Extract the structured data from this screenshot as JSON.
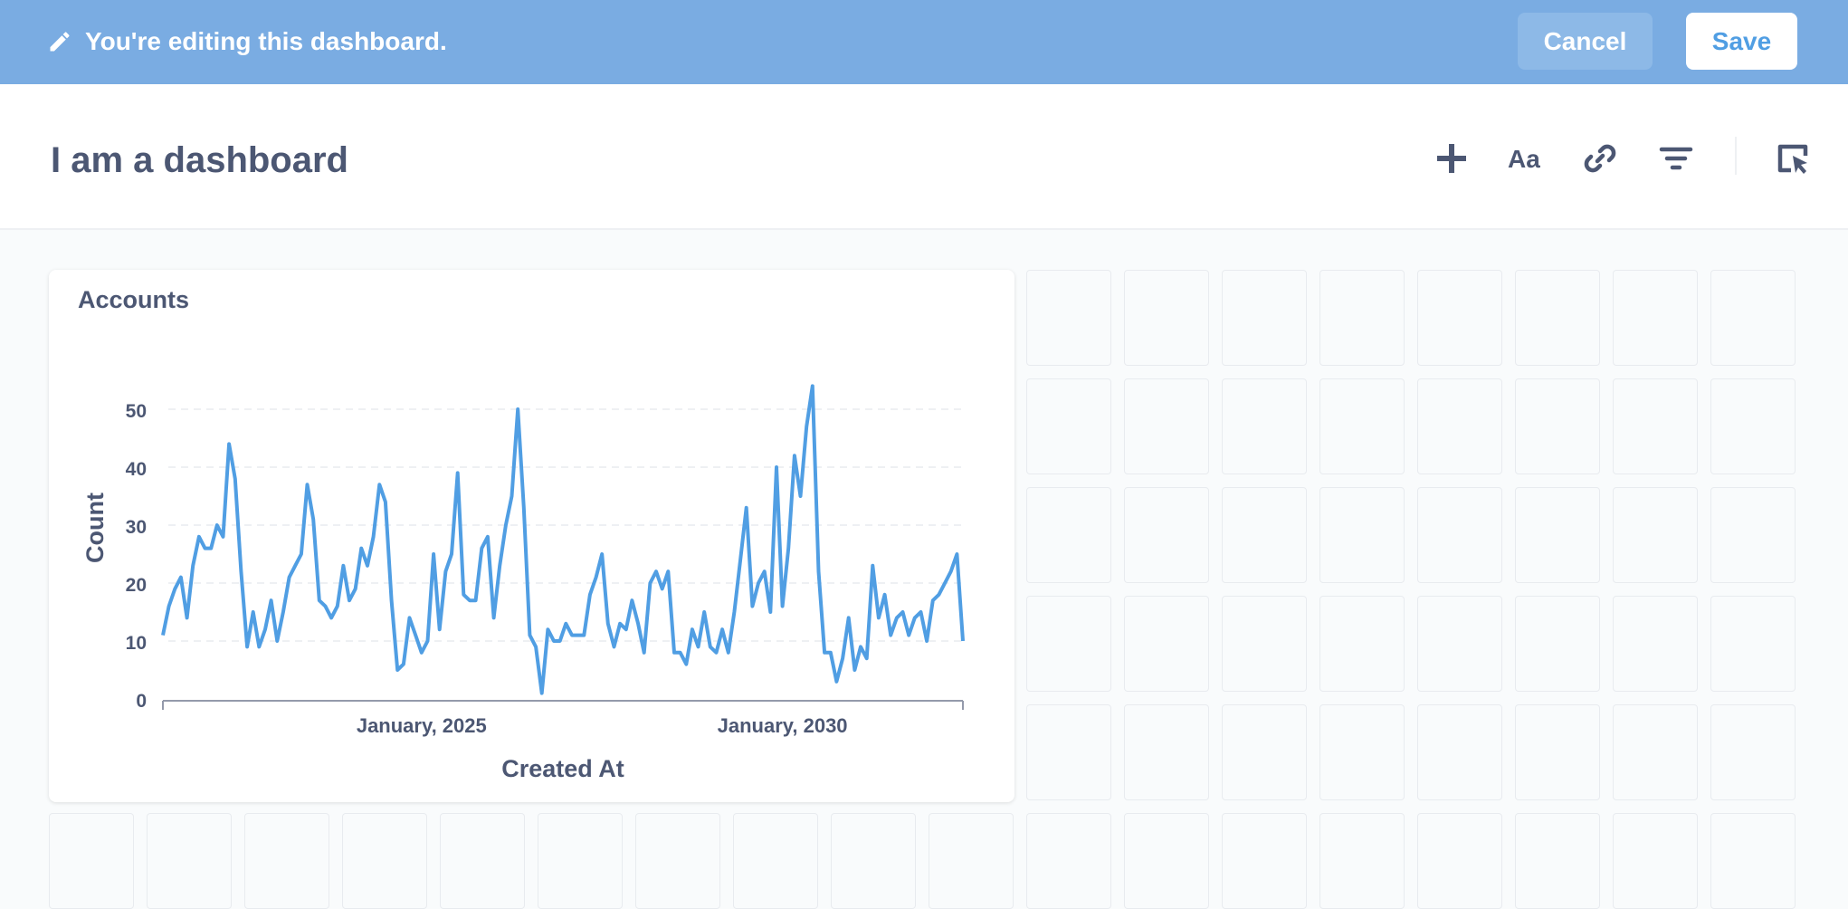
{
  "edit_bar": {
    "message": "You're editing this dashboard.",
    "cancel_label": "Cancel",
    "save_label": "Save"
  },
  "dashboard": {
    "title": "I am a dashboard",
    "toolbar_icons": [
      "add-icon",
      "text-icon",
      "link-icon",
      "filter-icon",
      "action-icon"
    ]
  },
  "card": {
    "title": "Accounts"
  },
  "colors": {
    "edit_bar": "#7aace2",
    "accent": "#509ee3",
    "text": "#4c5773"
  },
  "chart_data": {
    "type": "line",
    "title": "Accounts",
    "xlabel": "Created At",
    "ylabel": "Count",
    "ylim": [
      0,
      55
    ],
    "yticks": [
      0,
      10,
      20,
      30,
      40,
      50
    ],
    "x_tick_labels": [
      "January, 2025",
      "January, 2030"
    ],
    "x_start": "2021-06",
    "x_interval": "month",
    "grid": "horizontal-dashed",
    "series": [
      {
        "values": [
          11,
          16,
          19,
          21,
          14,
          23,
          28,
          26,
          26,
          30,
          28,
          44,
          38,
          22,
          9,
          15,
          9,
          12,
          17,
          10,
          15,
          21,
          23,
          25,
          37,
          31,
          17,
          16,
          14,
          16,
          23,
          17,
          19,
          26,
          23,
          28,
          37,
          34,
          17,
          5,
          6,
          14,
          11,
          8,
          10,
          25,
          12,
          22,
          25,
          39,
          18,
          17,
          17,
          26,
          28,
          14,
          23,
          30,
          35,
          50,
          33,
          11,
          9,
          1,
          12,
          10,
          10,
          13,
          11,
          11,
          11,
          18,
          21,
          25,
          13,
          9,
          13,
          12,
          17,
          13,
          8,
          20,
          22,
          19,
          22,
          8,
          8,
          6,
          12,
          9,
          15,
          9,
          8,
          12,
          8,
          15,
          24,
          33,
          16,
          20,
          22,
          15,
          40,
          16,
          26,
          42,
          35,
          47,
          54,
          22,
          8,
          8,
          3,
          7,
          14,
          5,
          9,
          7,
          23,
          14,
          18,
          11,
          14,
          15,
          11,
          14,
          15,
          10,
          17,
          18,
          20,
          22,
          25,
          10
        ]
      }
    ]
  }
}
